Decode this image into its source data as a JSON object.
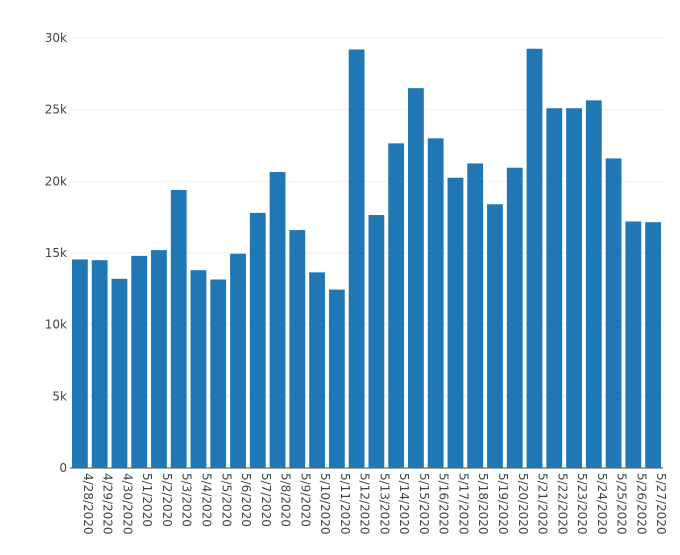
{
  "chart_data": {
    "type": "bar",
    "categories": [
      "4/28/2020",
      "4/29/2020",
      "4/30/2020",
      "5/1/2020",
      "5/2/2020",
      "5/3/2020",
      "5/4/2020",
      "5/5/2020",
      "5/6/2020",
      "5/7/2020",
      "5/8/2020",
      "5/9/2020",
      "5/10/2020",
      "5/11/2020",
      "5/12/2020",
      "5/13/2020",
      "5/14/2020",
      "5/15/2020",
      "5/16/2020",
      "5/17/2020",
      "5/18/2020",
      "5/19/2020",
      "5/20/2020",
      "5/21/2020",
      "5/22/2020",
      "5/23/2020",
      "5/24/2020",
      "5/25/2020",
      "5/26/2020",
      "5/27/2020"
    ],
    "values": [
      14550,
      14500,
      13200,
      14800,
      15200,
      19400,
      13800,
      13150,
      14950,
      17800,
      20650,
      16600,
      13650,
      12450,
      29200,
      17650,
      22650,
      26500,
      23000,
      20250,
      21250,
      18400,
      20950,
      29250,
      25100,
      25100,
      25650,
      21600,
      17200,
      17150
    ],
    "ylim": [
      0,
      30000
    ],
    "yticks": [
      0,
      5000,
      10000,
      15000,
      20000,
      25000,
      30000
    ],
    "ytick_labels": [
      "0",
      "5k",
      "10k",
      "15k",
      "20k",
      "25k",
      "30k"
    ],
    "grid": true,
    "bar_color": "#1f77b4",
    "title": "",
    "xlabel": "",
    "ylabel": ""
  }
}
